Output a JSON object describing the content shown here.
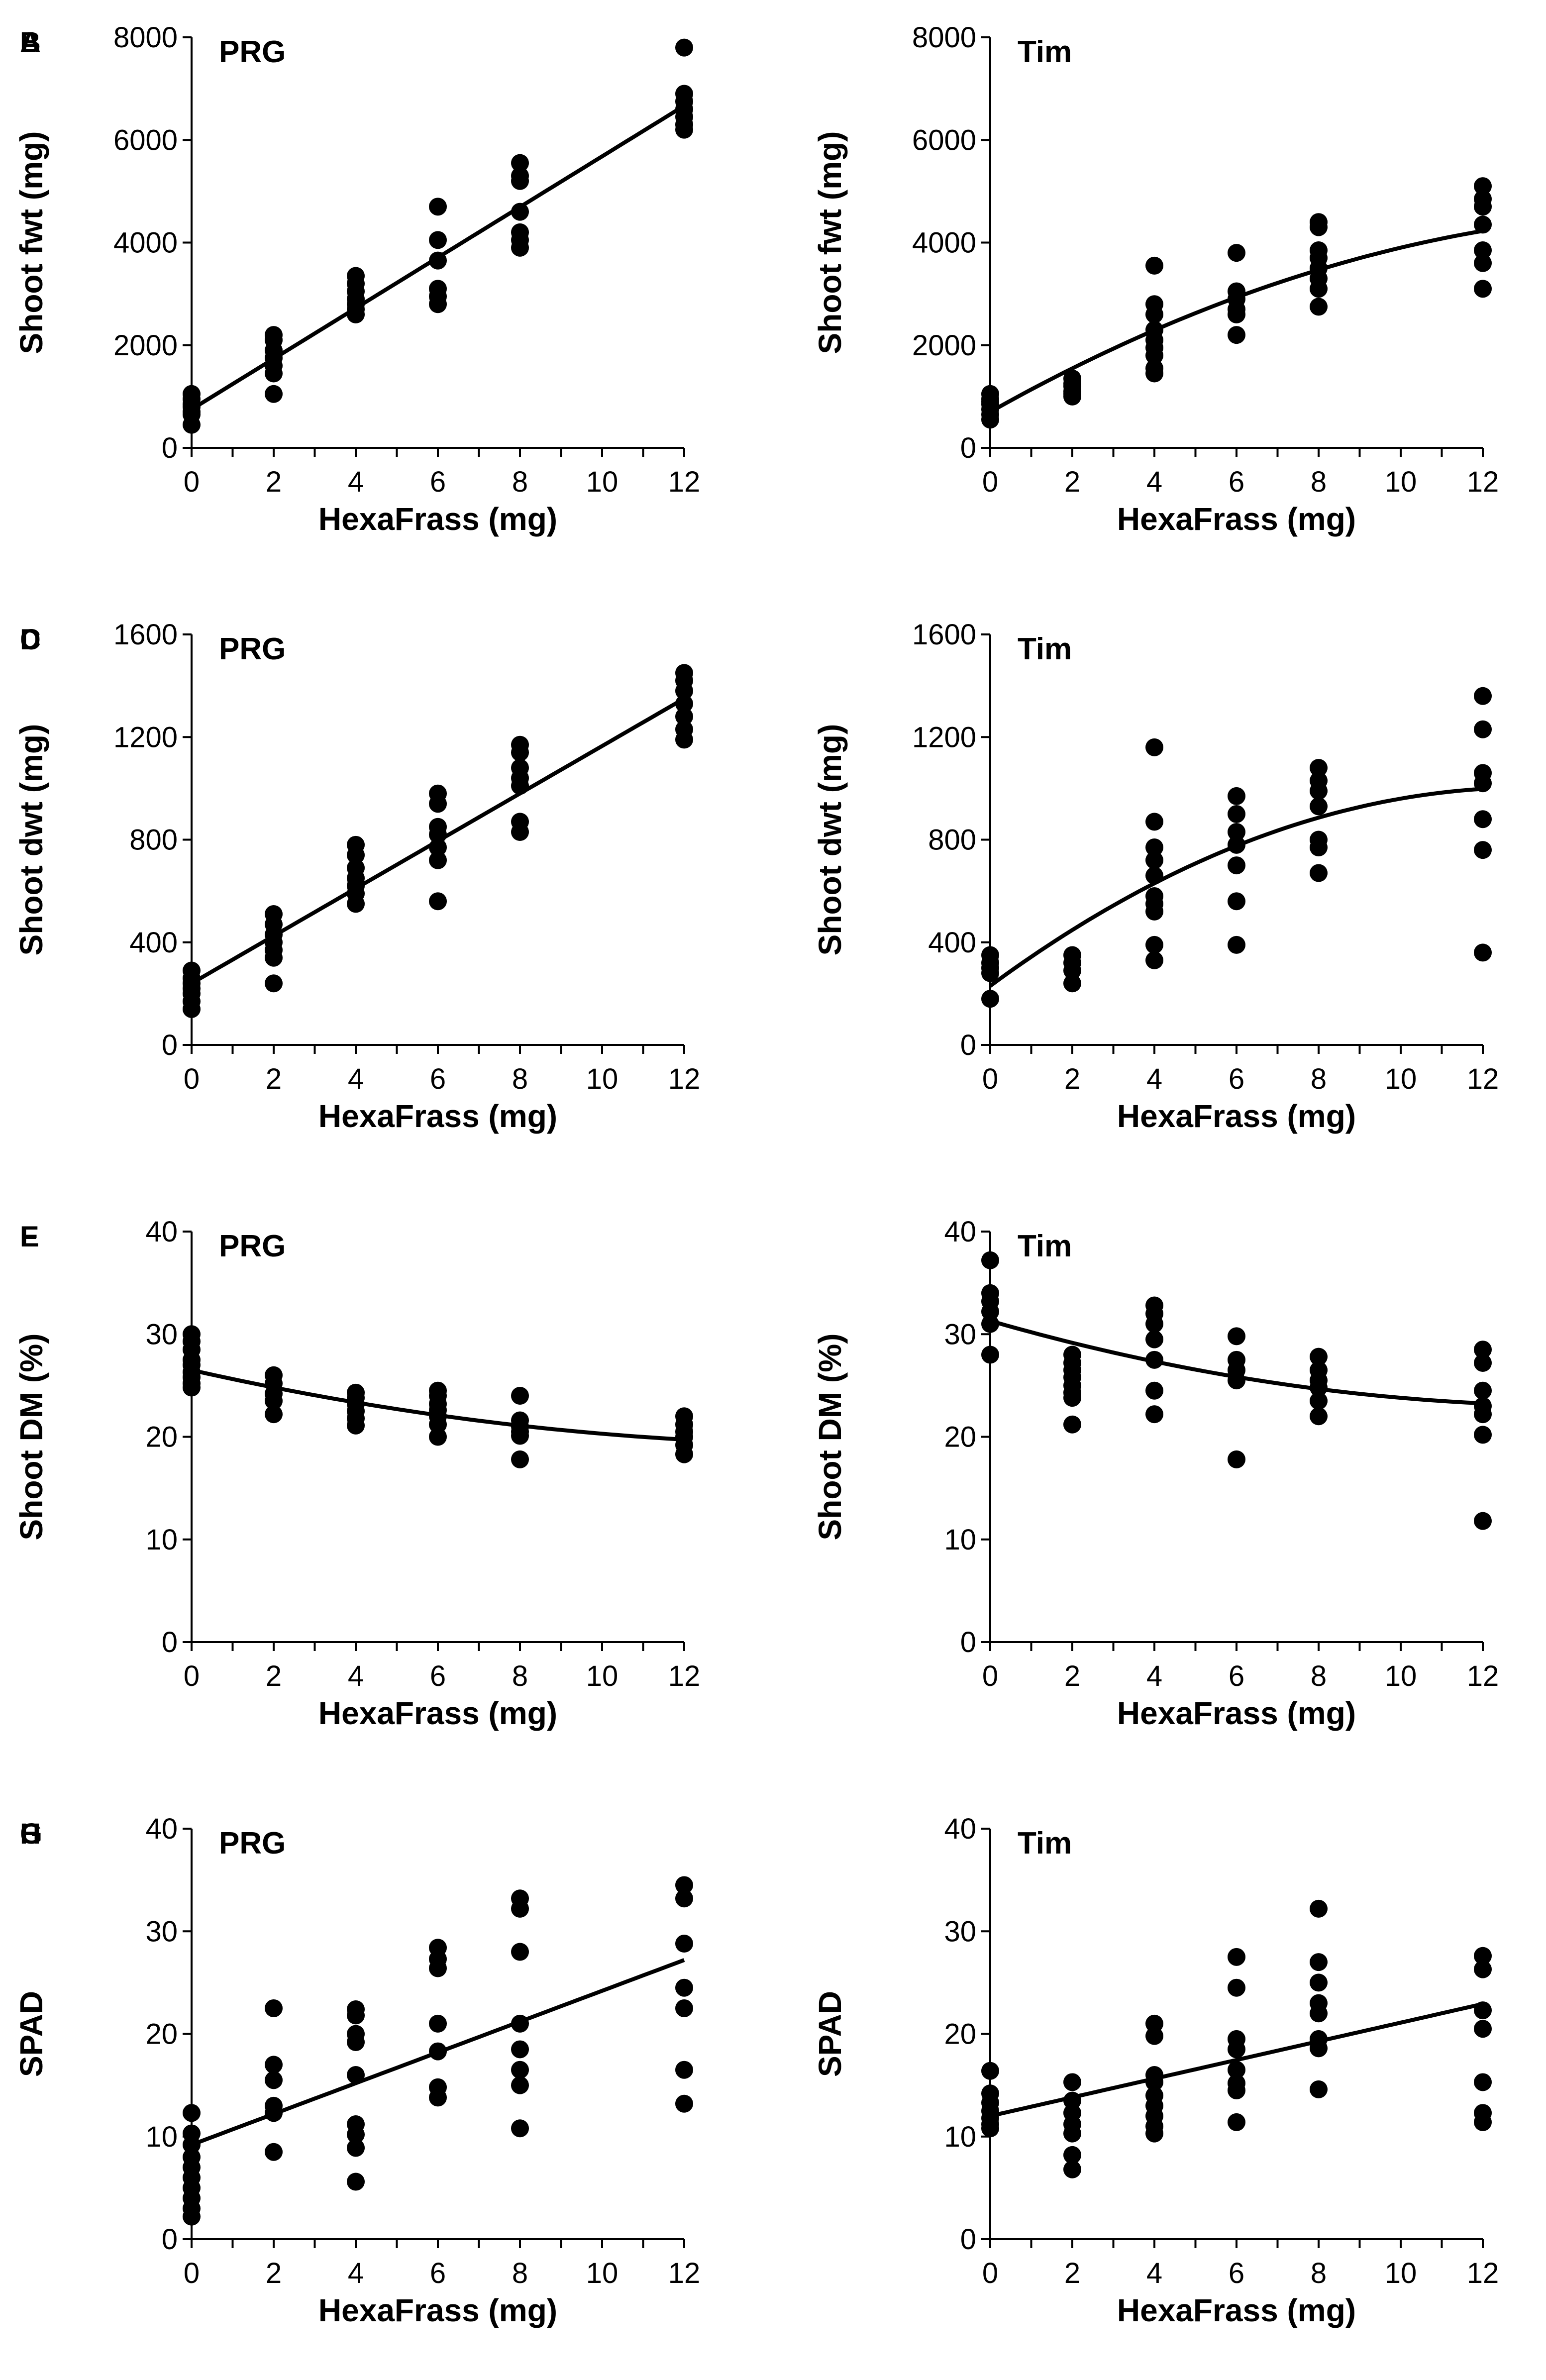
{
  "figure": {
    "background": "#ffffff",
    "ink": "#000000"
  },
  "chart_data": [
    {
      "panel": "A",
      "species": "PRG",
      "type": "scatter",
      "xlabel": "HexaFrass (mg)",
      "ylabel": "Shoot fwt  (mg)",
      "xlim": [
        0,
        12
      ],
      "ylim": [
        0,
        8000
      ],
      "y_ticks": [
        0,
        2000,
        4000,
        6000,
        8000
      ],
      "fit": {
        "shape": "linear",
        "intercept": 750,
        "slope": 493
      },
      "points": [
        {
          "x": 0,
          "values": [
            1050,
            950,
            850,
            800,
            700,
            650,
            450
          ]
        },
        {
          "x": 2,
          "values": [
            2200,
            2100,
            1900,
            1750,
            1600,
            1450,
            1050
          ]
        },
        {
          "x": 4,
          "values": [
            3350,
            3200,
            3050,
            2900,
            2800,
            2700,
            2600
          ]
        },
        {
          "x": 6,
          "values": [
            4700,
            4050,
            3650,
            3100,
            2950,
            2800
          ]
        },
        {
          "x": 8,
          "values": [
            5550,
            5300,
            5200,
            4600,
            4200,
            4050,
            3900
          ]
        },
        {
          "x": 12,
          "values": [
            7800,
            6900,
            6750,
            6600,
            6450,
            6300,
            6200
          ]
        }
      ]
    },
    {
      "panel": "B",
      "species": "Tim",
      "type": "scatter",
      "xlabel": "HexaFrass (mg)",
      "ylabel": "Shoot fwt  (mg)",
      "xlim": [
        0,
        12
      ],
      "ylim": [
        0,
        8000
      ],
      "y_ticks": [
        0,
        2000,
        4000,
        6000,
        8000
      ],
      "fit": {
        "shape": "quadratic",
        "c0": 700,
        "c1": 450,
        "c2": -13
      },
      "points": [
        {
          "x": 0,
          "values": [
            1050,
            950,
            900,
            850,
            750,
            650,
            550
          ]
        },
        {
          "x": 2,
          "values": [
            1350,
            1250,
            1200,
            1100,
            1050,
            1000
          ]
        },
        {
          "x": 4,
          "values": [
            3550,
            2800,
            2600,
            2300,
            2100,
            1950,
            1800,
            1550,
            1450
          ]
        },
        {
          "x": 6,
          "values": [
            3800,
            3050,
            2900,
            2700,
            2600,
            2200
          ]
        },
        {
          "x": 8,
          "values": [
            4400,
            4300,
            3850,
            3700,
            3500,
            3300,
            3100,
            2750
          ]
        },
        {
          "x": 12,
          "values": [
            5100,
            4850,
            4700,
            4350,
            3850,
            3600,
            3100
          ]
        }
      ]
    },
    {
      "panel": "C",
      "species": "PRG",
      "type": "scatter",
      "xlabel": "HexaFrass (mg)",
      "ylabel": "Shoot dwt  (mg)",
      "xlim": [
        0,
        12
      ],
      "ylim": [
        0,
        1600
      ],
      "y_ticks": [
        0,
        400,
        800,
        1200,
        1600
      ],
      "fit": {
        "shape": "linear",
        "intercept": 240,
        "slope": 92.5
      },
      "points": [
        {
          "x": 0,
          "values": [
            290,
            260,
            240,
            220,
            200,
            170,
            140
          ]
        },
        {
          "x": 2,
          "values": [
            510,
            470,
            430,
            400,
            370,
            340,
            240
          ]
        },
        {
          "x": 4,
          "values": [
            780,
            740,
            690,
            650,
            620,
            590,
            550
          ]
        },
        {
          "x": 6,
          "values": [
            980,
            940,
            850,
            820,
            770,
            720,
            560
          ]
        },
        {
          "x": 8,
          "values": [
            1170,
            1140,
            1080,
            1040,
            1010,
            870,
            830
          ]
        },
        {
          "x": 12,
          "values": [
            1450,
            1420,
            1380,
            1330,
            1280,
            1230,
            1190
          ]
        }
      ]
    },
    {
      "panel": "D",
      "species": "Tim",
      "type": "scatter",
      "xlabel": "HexaFrass (mg)",
      "ylabel": "Shoot dwt  (mg)",
      "xlim": [
        0,
        12
      ],
      "ylim": [
        0,
        1600
      ],
      "y_ticks": [
        0,
        400,
        800,
        1200,
        1600
      ],
      "fit": {
        "shape": "quadratic",
        "c0": 230,
        "c1": 118,
        "c2": -4.5
      },
      "points": [
        {
          "x": 0,
          "values": [
            350,
            320,
            300,
            280,
            180
          ]
        },
        {
          "x": 2,
          "values": [
            350,
            320,
            290,
            240
          ]
        },
        {
          "x": 4,
          "values": [
            1160,
            870,
            770,
            720,
            660,
            580,
            550,
            520,
            390,
            330
          ]
        },
        {
          "x": 6,
          "values": [
            970,
            900,
            830,
            780,
            700,
            560,
            390
          ]
        },
        {
          "x": 8,
          "values": [
            1080,
            1030,
            990,
            930,
            800,
            770,
            670
          ]
        },
        {
          "x": 12,
          "values": [
            1360,
            1230,
            1060,
            1020,
            880,
            760,
            360
          ]
        }
      ]
    },
    {
      "panel": "E",
      "species": "PRG",
      "type": "scatter",
      "xlabel": "HexaFrass (mg)",
      "ylabel": "Shoot DM (%)",
      "xlim": [
        0,
        12
      ],
      "ylim": [
        0,
        40
      ],
      "y_ticks": [
        0,
        10,
        20,
        30,
        40
      ],
      "fit": {
        "shape": "quadratic",
        "c0": 26.5,
        "c1": -0.9,
        "c2": 0.028
      },
      "points": [
        {
          "x": 0,
          "values": [
            30,
            29.3,
            28.5,
            27.5,
            27,
            26.3,
            25.8,
            25.2,
            24.8
          ]
        },
        {
          "x": 2,
          "values": [
            26,
            25.2,
            24.2,
            23.5,
            22.2
          ]
        },
        {
          "x": 4,
          "values": [
            24.3,
            23.8,
            23.2,
            22.5,
            21.8,
            21.1
          ]
        },
        {
          "x": 6,
          "values": [
            24.5,
            24,
            23.2,
            22.6,
            22,
            21.2,
            20
          ]
        },
        {
          "x": 8,
          "values": [
            24,
            21.6,
            21,
            20.5,
            20.1,
            17.8
          ]
        },
        {
          "x": 12,
          "values": [
            22,
            21.2,
            20.5,
            20,
            19.2,
            18.3
          ]
        }
      ]
    },
    {
      "panel": "F",
      "species": "Tim",
      "type": "scatter",
      "xlabel": "HexaFrass (mg)",
      "ylabel": "Shoot DM (%)",
      "xlim": [
        0,
        12
      ],
      "ylim": [
        0,
        40
      ],
      "y_ticks": [
        0,
        10,
        20,
        30,
        40
      ],
      "fit": {
        "shape": "quadratic",
        "c0": 31.3,
        "c1": -1.15,
        "c2": 0.04
      },
      "points": [
        {
          "x": 0,
          "values": [
            37.2,
            34,
            33.2,
            32.2,
            31,
            28
          ]
        },
        {
          "x": 2,
          "values": [
            28,
            27.2,
            26.5,
            25.8,
            25,
            24.3,
            23.8,
            21.2
          ]
        },
        {
          "x": 4,
          "values": [
            32.8,
            32,
            31,
            29.5,
            27.5,
            24.5,
            22.2
          ]
        },
        {
          "x": 6,
          "values": [
            29.8,
            27.5,
            26.5,
            25.5,
            17.8
          ]
        },
        {
          "x": 8,
          "values": [
            27.8,
            26.5,
            25.5,
            24.8,
            23.5,
            22
          ]
        },
        {
          "x": 12,
          "values": [
            28.5,
            27.2,
            24.5,
            23,
            22.2,
            20.2,
            11.8
          ]
        }
      ]
    },
    {
      "panel": "G",
      "species": "PRG",
      "type": "scatter",
      "xlabel": "HexaFrass (mg)",
      "ylabel": "SPAD",
      "xlim": [
        0,
        12
      ],
      "ylim": [
        0,
        40
      ],
      "y_ticks": [
        0,
        10,
        20,
        30,
        40
      ],
      "fit": {
        "shape": "linear",
        "intercept": 9.2,
        "slope": 1.5
      },
      "points": [
        {
          "x": 0,
          "values": [
            12.3,
            10.3,
            9.2,
            8,
            7,
            6,
            5,
            4,
            3,
            2.2
          ]
        },
        {
          "x": 2,
          "values": [
            22.5,
            17,
            15.5,
            13,
            12.3,
            8.5
          ]
        },
        {
          "x": 4,
          "values": [
            22.4,
            21.8,
            20,
            19.2,
            16,
            11.2,
            10.2,
            8.9,
            5.6
          ]
        },
        {
          "x": 6,
          "values": [
            28.4,
            27.3,
            26.4,
            21,
            18.3,
            14.8,
            13.8
          ]
        },
        {
          "x": 8,
          "values": [
            33.2,
            32.2,
            28,
            21,
            18.5,
            16.5,
            15,
            10.8
          ]
        },
        {
          "x": 12,
          "values": [
            34.5,
            33.2,
            28.8,
            24.5,
            22.5,
            16.5,
            13.2
          ]
        }
      ]
    },
    {
      "panel": "H",
      "species": "Tim",
      "type": "scatter",
      "xlabel": "HexaFrass (mg)",
      "ylabel": "SPAD",
      "xlim": [
        0,
        12
      ],
      "ylim": [
        0,
        40
      ],
      "y_ticks": [
        0,
        10,
        20,
        30,
        40
      ],
      "fit": {
        "shape": "linear",
        "intercept": 12,
        "slope": 0.91
      },
      "points": [
        {
          "x": 0,
          "values": [
            16.4,
            14.2,
            13.3,
            12.5,
            11.8,
            11.2,
            10.8
          ]
        },
        {
          "x": 2,
          "values": [
            15.3,
            13.5,
            12.3,
            11.2,
            10.3,
            8.2,
            6.8
          ]
        },
        {
          "x": 4,
          "values": [
            21,
            19.8,
            16,
            15.3,
            14,
            13,
            12,
            11,
            10.3
          ]
        },
        {
          "x": 6,
          "values": [
            27.5,
            24.5,
            19.5,
            18.5,
            16.5,
            15.2,
            14.5,
            11.4
          ]
        },
        {
          "x": 8,
          "values": [
            32.2,
            27,
            25,
            23,
            22,
            19.5,
            18.6,
            14.6
          ]
        },
        {
          "x": 12,
          "values": [
            27.6,
            26.3,
            22.3,
            20.5,
            15.3,
            12.3,
            11.4
          ]
        }
      ]
    }
  ]
}
